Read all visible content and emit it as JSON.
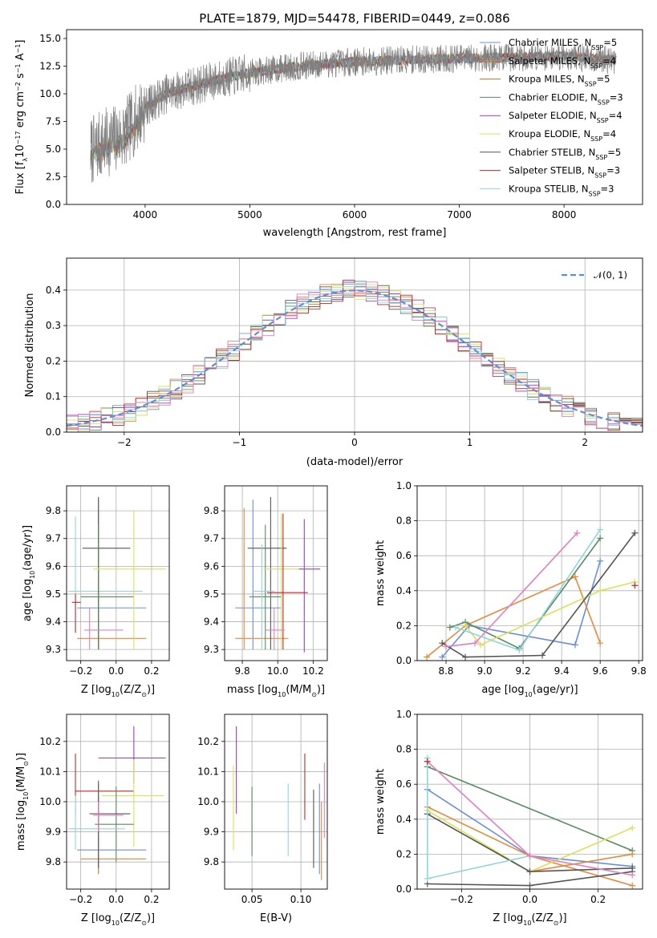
{
  "chart_data": [
    {
      "id": "spectrum",
      "type": "line",
      "title": "PLATE=1879, MJD=54478, FIBERID=0449, z=0.086",
      "xlabel": "wavelength [Angstrom, rest frame]",
      "ylabel": "Flux [f_λ10⁻¹⁷ erg cm⁻² s⁻¹ A⁻¹]",
      "xlim": [
        3250,
        8750
      ],
      "ylim": [
        0,
        15.8
      ],
      "xticks": [
        4000,
        5000,
        6000,
        7000,
        8000
      ],
      "yticks": [
        0.0,
        2.5,
        5.0,
        7.5,
        10.0,
        12.5,
        15.0
      ],
      "legend_position": "top-right",
      "data_range": [
        3480,
        8500
      ],
      "continuum": {
        "x": [
          3480,
          3600,
          3800,
          4000,
          4200,
          4500,
          4800,
          5000,
          5300,
          5600,
          6000,
          6300,
          6600,
          7000,
          7500,
          8000,
          8500
        ],
        "y": [
          4.8,
          5.5,
          6.3,
          8.8,
          10.0,
          10.8,
          11.5,
          11.9,
          12.3,
          12.6,
          12.9,
          13.0,
          13.1,
          13.2,
          13.3,
          13.4,
          13.0
        ]
      },
      "series": [
        {
          "name": "Chabrier MILES, N_SSP=5",
          "color": "#6a8fd9"
        },
        {
          "name": "Salpeter MILES, N_SSP=4",
          "color": "#e58a3a"
        },
        {
          "name": "Kroupa MILES, N_SSP=5",
          "color": "#b5752c"
        },
        {
          "name": "Chabrier ELODIE, N_SSP=3",
          "color": "#5a8a62"
        },
        {
          "name": "Salpeter ELODIE, N_SSP=4",
          "color": "#9b3fc0"
        },
        {
          "name": "Kroupa ELODIE, N_SSP=4",
          "color": "#dbe05a"
        },
        {
          "name": "Chabrier STELIB, N_SSP=5",
          "color": "#555555"
        },
        {
          "name": "Salpeter STELIB, N_SSP=3",
          "color": "#c0282b"
        },
        {
          "name": "Kroupa STELIB, N_SSP=3",
          "color": "#8fd6dc"
        }
      ],
      "data_color": "#808080"
    },
    {
      "id": "residuals",
      "type": "line",
      "xlabel": "(data-model)/error",
      "ylabel": "Normed distribution",
      "xlim": [
        -2.5,
        2.5
      ],
      "ylim": [
        0,
        0.49
      ],
      "xticks": [
        -2,
        -1,
        0,
        1,
        2
      ],
      "yticks": [
        0.0,
        0.1,
        0.2,
        0.3,
        0.4
      ],
      "grid": true,
      "legend_position": "top-right",
      "gaussian": {
        "name": "𝒩(0, 1)",
        "color": "#5b8fd6"
      },
      "bin_width": 0.1,
      "hist_colors": [
        "#6a8fd9",
        "#e58a3a",
        "#5a8a62",
        "#9b3fc0",
        "#dbe05a",
        "#555555",
        "#c0282b",
        "#8fd6dc",
        "#e37fc0"
      ]
    },
    {
      "id": "age-vs-Z",
      "type": "scatter",
      "xlabel": "Z [log₁₀(Z/Z☉)]",
      "ylabel": "age  [log₁₀(age/yr)]",
      "xlim": [
        -0.28,
        0.3
      ],
      "ylim": [
        9.26,
        9.89
      ],
      "xticks": [
        -0.2,
        0.0,
        0.2
      ],
      "xticklabels": [
        "−0.2",
        "0.0",
        "0.2"
      ],
      "yticks": [
        9.3,
        9.4,
        9.5,
        9.6,
        9.7,
        9.8
      ],
      "grid": true,
      "points": [
        {
          "x": -0.23,
          "y": 9.51,
          "xe": [
            -0.27,
            0.15
          ],
          "ye": [
            9.36,
            9.78
          ],
          "color": "#8fd6dc"
        },
        {
          "x": -0.1,
          "y": 9.45,
          "xe": [
            -0.22,
            0.17
          ],
          "ye": [
            9.3,
            9.84
          ],
          "color": "#6a8fd9"
        },
        {
          "x": -0.1,
          "y": 9.34,
          "xe": [
            -0.22,
            0.17
          ],
          "ye": [
            9.3,
            9.8
          ],
          "color": "#e58a3a"
        },
        {
          "x": -0.1,
          "y": 9.665,
          "xe": [
            -0.19,
            0.08
          ],
          "ye": [
            9.3,
            9.85
          ],
          "color": "#555555"
        },
        {
          "x": -0.1,
          "y": 9.49,
          "xe": [
            -0.2,
            0.1
          ],
          "ye": [
            9.3,
            9.75
          ],
          "color": "#5a8a62"
        },
        {
          "x": 0.1,
          "y": 9.59,
          "xe": [
            -0.13,
            0.28
          ],
          "ye": [
            9.3,
            9.8
          ],
          "color": "#dbe05a"
        },
        {
          "x": -0.15,
          "y": 9.37,
          "xe": [
            -0.18,
            0.04
          ],
          "ye": [
            9.3,
            9.45
          ],
          "color": "#e37fc0"
        },
        {
          "x": -0.23,
          "y": 9.47,
          "xe": [
            -0.25,
            -0.2
          ],
          "ye": [
            9.36,
            9.5
          ],
          "color": "#c0282b"
        }
      ]
    },
    {
      "id": "age-vs-mass",
      "type": "scatter",
      "xlabel": "mass [log₁₀(M/M☉)]",
      "ylabel": "",
      "xlim": [
        9.7,
        10.28
      ],
      "ylim": [
        9.26,
        9.89
      ],
      "xticks": [
        9.8,
        10.0,
        10.2
      ],
      "xticklabels": [
        "9.8",
        "10.0",
        "10.2"
      ],
      "yticks": [
        9.3,
        9.4,
        9.5,
        9.6,
        9.7,
        9.8
      ],
      "grid": true,
      "points": [
        {
          "x": 9.86,
          "y": 9.45,
          "xe": [
            9.76,
            10.02
          ],
          "ye": [
            9.3,
            9.84
          ],
          "color": "#6a8fd9"
        },
        {
          "x": 9.81,
          "y": 9.34,
          "xe": [
            9.76,
            10.06
          ],
          "ye": [
            9.3,
            9.81
          ],
          "color": "#e58a3a"
        },
        {
          "x": 9.96,
          "y": 9.665,
          "xe": [
            9.83,
            10.05
          ],
          "ye": [
            9.3,
            9.85
          ],
          "color": "#555555"
        },
        {
          "x": 9.93,
          "y": 9.49,
          "xe": [
            9.84,
            10.02
          ],
          "ye": [
            9.3,
            9.75
          ],
          "color": "#5a8a62"
        },
        {
          "x": 10.02,
          "y": 9.59,
          "xe": [
            9.92,
            10.14
          ],
          "ye": [
            9.3,
            9.79
          ],
          "color": "#dbe05a"
        },
        {
          "x": 10.15,
          "y": 9.59,
          "xe": [
            10.12,
            10.24
          ],
          "ye": [
            9.29,
            9.77
          ],
          "color": "#9b3fc0"
        },
        {
          "x": 10.03,
          "y": 9.505,
          "xe": [
            9.94,
            10.17
          ],
          "ye": [
            9.3,
            9.79
          ],
          "color": "#c0282b"
        },
        {
          "x": 9.91,
          "y": 9.51,
          "xe": [
            9.86,
            9.98
          ],
          "ye": [
            9.3,
            9.68
          ],
          "color": "#8fd6dc"
        },
        {
          "x": 9.98,
          "y": 9.37,
          "xe": [
            9.93,
            10.04
          ],
          "ye": [
            9.3,
            9.45
          ],
          "color": "#e37fc0"
        }
      ]
    },
    {
      "id": "mass-weight-vs-age",
      "type": "line",
      "xlabel": "age  [log₁₀(age/yr)]",
      "ylabel": "mass weight",
      "xlim": [
        8.65,
        9.82
      ],
      "ylim": [
        0,
        1
      ],
      "xticks": [
        8.8,
        9.0,
        9.2,
        9.4,
        9.6,
        9.8
      ],
      "yticks": [
        0.0,
        0.2,
        0.4,
        0.6,
        0.8,
        1.0
      ],
      "grid": true,
      "series": [
        {
          "color": "#6a8fd9",
          "x": [
            8.78,
            8.92,
            9.47,
            9.6
          ],
          "y": [
            0.02,
            0.2,
            0.09,
            0.57
          ]
        },
        {
          "color": "#e58a3a",
          "x": [
            8.7,
            8.9,
            9.47,
            9.6
          ],
          "y": [
            0.02,
            0.2,
            0.48,
            0.1
          ]
        },
        {
          "color": "#5a8a62",
          "x": [
            8.82,
            8.9,
            9.18,
            9.6
          ],
          "y": [
            0.19,
            0.22,
            0.07,
            0.7
          ]
        },
        {
          "color": "#dbe05a",
          "x": [
            8.9,
            8.98,
            9.6,
            9.78
          ],
          "y": [
            0.2,
            0.09,
            0.4,
            0.45
          ]
        },
        {
          "color": "#555555",
          "x": [
            8.78,
            8.9,
            9.3,
            9.78
          ],
          "y": [
            0.1,
            0.02,
            0.03,
            0.73
          ]
        },
        {
          "color": "#e37fc0",
          "x": [
            8.8,
            8.95,
            9.48
          ],
          "y": [
            0.08,
            0.1,
            0.73
          ]
        },
        {
          "color": "#8fd6dc",
          "x": [
            8.85,
            9.18,
            9.6
          ],
          "y": [
            0.19,
            0.06,
            0.75
          ]
        },
        {
          "color": "#c0282b",
          "x": [
            9.78
          ],
          "y": [
            0.43
          ]
        }
      ]
    },
    {
      "id": "mass-vs-Z",
      "type": "scatter",
      "xlabel": "Z [log₁₀(Z/Z☉)]",
      "ylabel": "mass [log₁₀(M/M☉)]",
      "xlim": [
        -0.28,
        0.3
      ],
      "ylim": [
        9.71,
        10.29
      ],
      "xticks": [
        -0.2,
        0.0,
        0.2
      ],
      "xticklabels": [
        "−0.2",
        "0.0",
        "0.2"
      ],
      "yticks": [
        9.8,
        9.9,
        10.0,
        10.1,
        10.2
      ],
      "grid": true,
      "points": [
        {
          "x": -0.23,
          "y": 10.035,
          "xe": [
            -0.23,
            0.1
          ],
          "ye": [
            9.96,
            10.16
          ],
          "color": "#c0282b"
        },
        {
          "x": 0.1,
          "y": 10.145,
          "xe": [
            -0.1,
            0.28
          ],
          "ye": [
            10.06,
            10.25
          ],
          "color": "#9b3fc0"
        },
        {
          "x": 0.1,
          "y": 10.02,
          "xe": [
            -0.08,
            0.27
          ],
          "ye": [
            9.85,
            10.14
          ],
          "color": "#dbe05a"
        },
        {
          "x": 0.0,
          "y": 9.925,
          "xe": [
            -0.12,
            0.1
          ],
          "ye": [
            9.8,
            10.05
          ],
          "color": "#5a8a62"
        },
        {
          "x": -0.1,
          "y": 9.84,
          "xe": [
            -0.22,
            0.17
          ],
          "ye": [
            9.76,
            10.02
          ],
          "color": "#6a8fd9"
        },
        {
          "x": -0.1,
          "y": 9.81,
          "xe": [
            -0.2,
            0.17
          ],
          "ye": [
            9.76,
            10.06
          ],
          "color": "#e58a3a"
        },
        {
          "x": -0.1,
          "y": 9.96,
          "xe": [
            -0.15,
            0.08
          ],
          "ye": [
            9.78,
            10.07
          ],
          "color": "#555555"
        },
        {
          "x": -0.23,
          "y": 9.91,
          "xe": [
            -0.27,
            0.05
          ],
          "ye": [
            9.84,
            10.02
          ],
          "color": "#8fd6dc"
        },
        {
          "x": -0.1,
          "y": 9.955,
          "xe": [
            -0.13,
            0.04
          ],
          "ye": [
            9.9,
            10.0
          ],
          "color": "#e37fc0"
        }
      ]
    },
    {
      "id": "mass-vs-EBV",
      "type": "scatter",
      "xlabel": "E(B-V)",
      "ylabel": "",
      "xlim": [
        0.022,
        0.127
      ],
      "ylim": [
        9.71,
        10.29
      ],
      "xticks": [
        0.05,
        0.1
      ],
      "xticklabels": [
        "0.05",
        "0.10"
      ],
      "yticks": [
        9.8,
        9.9,
        10.0,
        10.1,
        10.2
      ],
      "grid": true,
      "points": [
        {
          "x": 0.031,
          "y": 10.0,
          "xe": [
            0.031,
            0.031
          ],
          "ye": [
            9.84,
            10.12
          ],
          "color": "#dbe05a"
        },
        {
          "x": 0.034,
          "y": 10.1,
          "xe": [
            0.034,
            0.034
          ],
          "ye": [
            9.96,
            10.25
          ],
          "color": "#9b3fc0"
        },
        {
          "x": 0.05,
          "y": 9.92,
          "xe": [
            0.05,
            0.05
          ],
          "ye": [
            9.82,
            10.05
          ],
          "color": "#5a8a62"
        },
        {
          "x": 0.087,
          "y": 9.95,
          "xe": [
            0.087,
            0.087
          ],
          "ye": [
            9.82,
            10.06
          ],
          "color": "#8fd6dc"
        },
        {
          "x": 0.104,
          "y": 10.05,
          "xe": [
            0.104,
            0.104
          ],
          "ye": [
            9.94,
            10.16
          ],
          "color": "#c0282b"
        },
        {
          "x": 0.113,
          "y": 9.9,
          "xe": [
            0.113,
            0.113
          ],
          "ye": [
            9.78,
            10.04
          ],
          "color": "#555555"
        },
        {
          "x": 0.119,
          "y": 9.86,
          "xe": [
            0.119,
            0.119
          ],
          "ye": [
            9.76,
            10.06
          ],
          "color": "#6a8fd9"
        },
        {
          "x": 0.121,
          "y": 9.85,
          "xe": [
            0.121,
            0.121
          ],
          "ye": [
            9.74,
            10.0
          ],
          "color": "#e58a3a"
        },
        {
          "x": 0.124,
          "y": 10.0,
          "xe": [
            0.124,
            0.124
          ],
          "ye": [
            9.88,
            10.13
          ],
          "color": "#e37fc0"
        }
      ]
    },
    {
      "id": "mass-weight-vs-Z",
      "type": "line",
      "xlabel": "Z [log₁₀(Z/Z☉)]",
      "ylabel": "mass weight",
      "xlim": [
        -0.33,
        0.33
      ],
      "ylim": [
        0,
        1
      ],
      "xticks": [
        -0.2,
        0.0,
        0.2
      ],
      "xticklabels": [
        "−0.2",
        "0.0",
        "0.2"
      ],
      "yticks": [
        0.0,
        0.2,
        0.4,
        0.6,
        0.8,
        1.0
      ],
      "grid": true,
      "series": [
        {
          "color": "#5a8a62",
          "x": [
            -0.3,
            0.3
          ],
          "y": [
            0.7,
            0.22
          ]
        },
        {
          "color": "#6a8fd9",
          "x": [
            -0.3,
            0.0,
            0.3
          ],
          "y": [
            0.57,
            0.19,
            0.13
          ]
        },
        {
          "color": "#e58a3a",
          "x": [
            -0.3,
            0.0,
            0.3
          ],
          "y": [
            0.47,
            0.19,
            0.02
          ]
        },
        {
          "color": "#e58a3a",
          "x": [
            0.0,
            0.3
          ],
          "y": [
            0.1,
            0.2
          ]
        },
        {
          "color": "#dbe05a",
          "x": [
            -0.3,
            0.0,
            0.3
          ],
          "y": [
            0.45,
            0.1,
            0.35
          ]
        },
        {
          "color": "#555555",
          "x": [
            -0.3,
            0.0,
            0.3
          ],
          "y": [
            0.03,
            0.02,
            0.1
          ]
        },
        {
          "color": "#555555",
          "x": [
            -0.3,
            0.0,
            0.3
          ],
          "y": [
            0.43,
            0.1,
            0.12
          ]
        },
        {
          "color": "#8fd6dc",
          "x": [
            -0.3,
            0.0
          ],
          "y": [
            0.06,
            0.19
          ]
        },
        {
          "color": "#8fd6dc",
          "x": [
            -0.3,
            -0.3
          ],
          "y": [
            0.06,
            0.75
          ]
        },
        {
          "color": "#e37fc0",
          "x": [
            -0.3,
            0.0,
            0.3
          ],
          "y": [
            0.73,
            0.19,
            0.08
          ]
        },
        {
          "color": "#c0282b",
          "x": [
            -0.3
          ],
          "y": [
            0.73
          ]
        }
      ]
    }
  ]
}
